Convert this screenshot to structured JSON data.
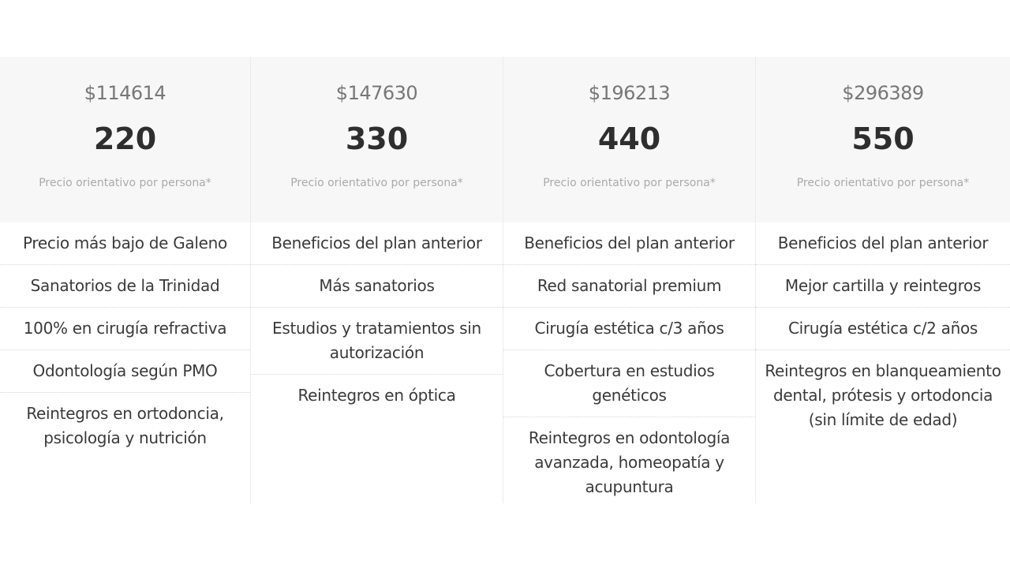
{
  "plans": [
    {
      "price": "$114614",
      "name": "220",
      "note": "Precio orientativo por persona*",
      "features": [
        "Precio más bajo de Galeno",
        "Sanatorios de la Trinidad",
        "100% en cirugía refractiva",
        "Odontología según PMO",
        "Reintegros en ortodoncia, psicología y nutrición"
      ]
    },
    {
      "price": "$147630",
      "name": "330",
      "note": "Precio orientativo por persona*",
      "features": [
        "Beneficios del plan anterior",
        "Más sanatorios",
        "Estudios y tratamientos sin autorización",
        "Reintegros en óptica"
      ]
    },
    {
      "price": "$196213",
      "name": "440",
      "note": "Precio orientativo por persona*",
      "features": [
        "Beneficios del plan anterior",
        "Red sanatorial premium",
        "Cirugía estética c/3 años",
        "Cobertura en estudios genéticos",
        "Reintegros en odontología avanzada, homeopatía y acupuntura"
      ]
    },
    {
      "price": "$296389",
      "name": "550",
      "note": "Precio orientativo por persona*",
      "features": [
        "Beneficios del plan anterior",
        "Mejor cartilla y reintegros",
        "Cirugía estética c/2 años",
        "Reintegros en blanqueamiento dental, prótesis y ortodoncia (sin límite de edad)"
      ]
    }
  ]
}
